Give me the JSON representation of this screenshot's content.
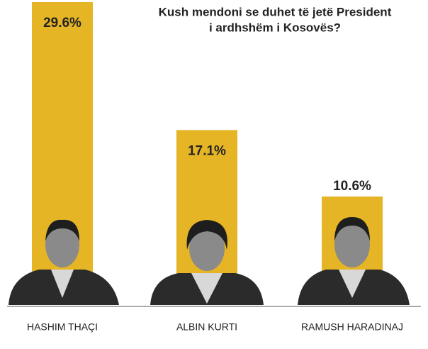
{
  "chart_data": {
    "type": "bar",
    "title": [
      "Kush mendoni se duhet të jetë President",
      "i ardhshëm i Kosovës?"
    ],
    "categories": [
      "HASHIM THAÇI",
      "ALBIN KURTI",
      "RAMUSH HARADINAJ"
    ],
    "values": [
      29.6,
      17.1,
      10.6
    ],
    "value_labels": [
      "29.6%",
      "17.1%",
      "10.6%"
    ],
    "color": "#e6b525"
  }
}
